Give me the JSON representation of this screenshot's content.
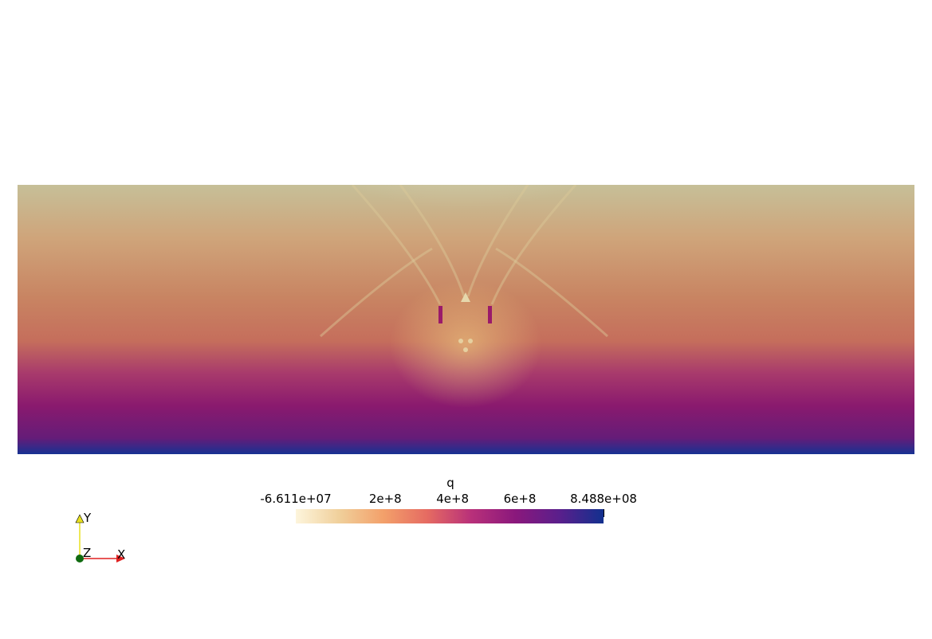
{
  "scalar_bar": {
    "title": "q",
    "tick_labels": [
      "-6.611e+07",
      "2e+8",
      "4e+8",
      "6e+8",
      "8.488e+08"
    ],
    "range": [
      -66110000,
      848800000
    ],
    "ticks": [
      -66110000,
      200000000,
      400000000,
      600000000,
      848800000
    ],
    "colormap": [
      "#fdf5dc",
      "#f0cf9a",
      "#f3a06a",
      "#e56a62",
      "#b8307a",
      "#8a187c",
      "#5a1f8c",
      "#12308e"
    ]
  },
  "orientation_axes": {
    "x_label": "X",
    "y_label": "Y",
    "z_label": "Z",
    "x_color": "#e02020",
    "y_color": "#e8e020",
    "z_color": "#106a10"
  },
  "field_colors": {
    "top": "#c5bd95",
    "upper_mid": "#d0a476",
    "mid": "#c27c58",
    "lower_mid": "#b55a6a",
    "low": "#8a1a6c",
    "bottom": "#5b1f78",
    "bottom_edge": "#16318d",
    "defect": "#9a1a6a"
  }
}
